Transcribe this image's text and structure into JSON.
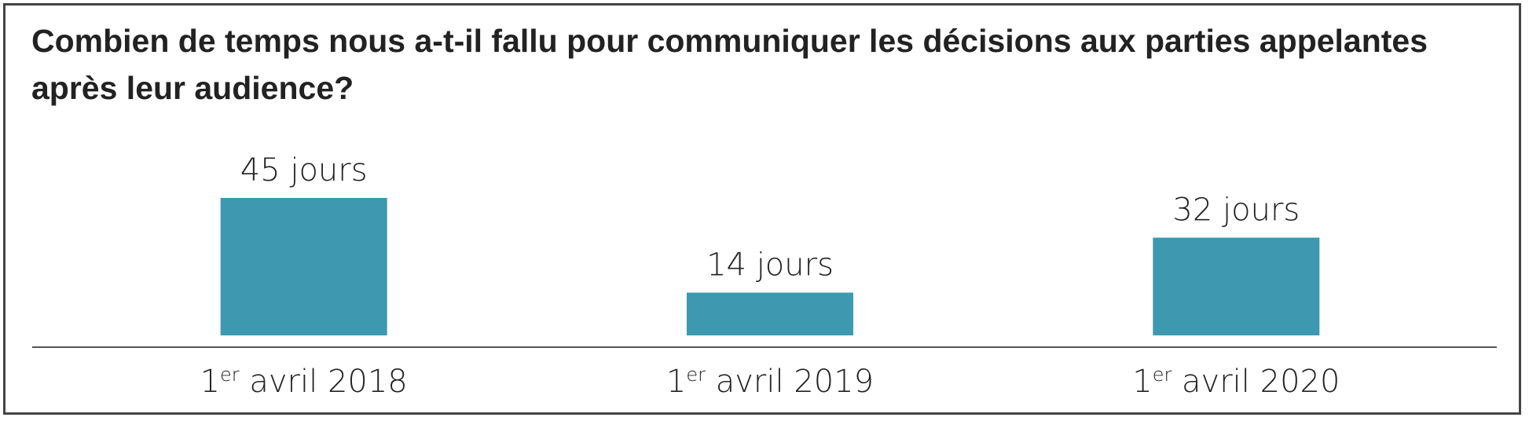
{
  "chart_data": {
    "type": "bar",
    "title": "Combien de temps nous a-t-il fallu pour communiquer les décisions aux parties appelantes après leur audience?",
    "categories": [
      "1er avril 2018",
      "1er avril 2019",
      "1er avril 2020"
    ],
    "values": [
      45,
      14,
      32
    ],
    "value_labels": [
      "45 jours",
      "14 jours",
      "32 jours"
    ],
    "color": "#3d98b0"
  }
}
